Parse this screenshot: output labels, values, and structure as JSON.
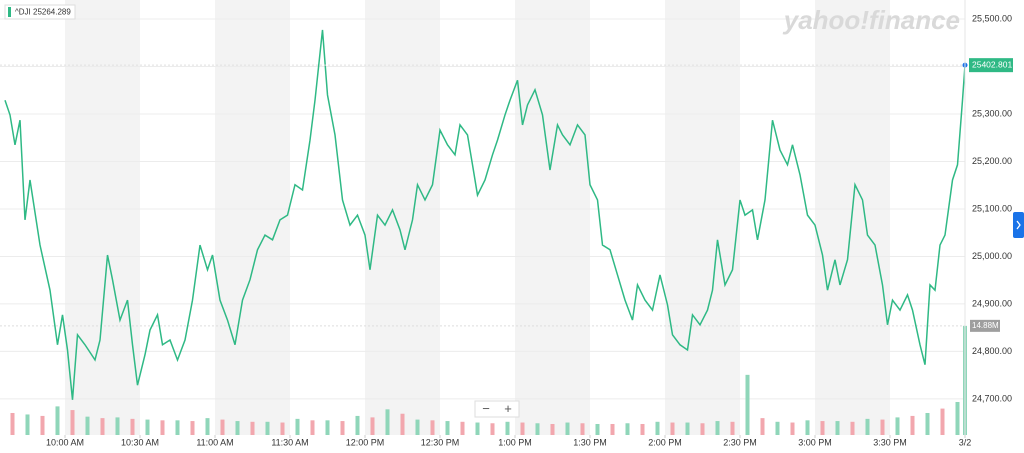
{
  "chart_data": {
    "type": "line",
    "brand": "yahoo!finance",
    "header_value": "25264.289",
    "zoom_controls": [
      "−",
      "+"
    ],
    "xlim": [
      4,
      390
    ],
    "xticks": [
      {
        "value": 30,
        "label": "10:00 AM"
      },
      {
        "value": 60,
        "label": "10:30 AM"
      },
      {
        "value": 90,
        "label": "11:00 AM"
      },
      {
        "value": 120,
        "label": "11:30 AM"
      },
      {
        "value": 150,
        "label": "12:00 PM"
      },
      {
        "value": 180,
        "label": "12:30 PM"
      },
      {
        "value": 210,
        "label": "1:00 PM"
      },
      {
        "value": 240,
        "label": "1:30 PM"
      },
      {
        "value": 270,
        "label": "2:00 PM"
      },
      {
        "value": 300,
        "label": "2:30 PM"
      },
      {
        "value": 330,
        "label": "3:00 PM"
      },
      {
        "value": 360,
        "label": "3:30 PM"
      },
      {
        "value": 390,
        "label": "3/2"
      }
    ],
    "ylim": [
      24624,
      25540
    ],
    "yticks": [
      {
        "value": 24700,
        "label": "24,700.00"
      },
      {
        "value": 24800,
        "label": "24,800.00"
      },
      {
        "value": 24900,
        "label": "24,900.00"
      },
      {
        "value": 25000,
        "label": "25,000.00"
      },
      {
        "value": 25100,
        "label": "25,100.00"
      },
      {
        "value": 25200,
        "label": "25,200.00"
      },
      {
        "value": 25300,
        "label": "25,300.00"
      },
      {
        "value": 25400,
        "label": "25,400.00"
      },
      {
        "value": 25500,
        "label": "25,500.00"
      }
    ],
    "series": [
      {
        "name": "^DJI",
        "color": "#2fb985",
        "x": [
          6,
          8,
          10,
          12,
          14,
          16,
          20,
          24,
          27,
          29,
          31,
          33,
          35,
          38,
          42,
          44,
          47,
          49,
          52,
          55,
          57,
          59,
          62,
          64,
          67,
          69,
          72,
          75,
          78,
          81,
          84,
          87,
          89,
          92,
          95,
          98,
          101,
          104,
          107,
          110,
          113,
          116,
          119,
          122,
          125,
          128,
          130,
          133,
          135,
          138,
          141,
          144,
          147,
          150,
          152,
          155,
          158,
          161,
          164,
          166,
          169,
          171,
          174,
          177,
          180,
          183,
          186,
          188,
          191,
          193,
          195,
          198,
          201,
          203,
          206,
          208,
          211,
          213,
          215,
          218,
          221,
          224,
          227,
          229,
          232,
          235,
          238,
          240,
          243,
          245,
          248,
          251,
          254,
          257,
          259,
          262,
          265,
          268,
          271,
          273,
          276,
          279,
          281,
          284,
          287,
          289,
          291,
          294,
          297,
          300,
          302,
          305,
          307,
          310,
          313,
          316,
          319,
          321,
          324,
          327,
          330,
          333,
          335,
          338,
          340,
          343,
          346,
          349,
          351,
          354,
          357,
          359,
          361,
          364,
          367,
          369,
          372,
          374,
          376,
          378,
          380,
          382,
          385,
          387,
          389,
          390
        ],
        "values": [
          25329,
          25298,
          25235,
          25287,
          25077,
          25161,
          25024,
          24929,
          24814,
          24877,
          24803,
          24698,
          24835,
          24814,
          24782,
          24824,
          25003,
          24951,
          24866,
          24908,
          24814,
          24729,
          24793,
          24845,
          24877,
          24814,
          24824,
          24782,
          24824,
          24908,
          25024,
          24972,
          25003,
          24908,
          24866,
          24814,
          24908,
          24951,
          25014,
          25045,
          25035,
          25077,
          25087,
          25151,
          25140,
          25245,
          25329,
          25477,
          25340,
          25256,
          25119,
          25066,
          25087,
          25045,
          24972,
          25087,
          25066,
          25098,
          25056,
          25014,
          25077,
          25151,
          25119,
          25151,
          25266,
          25235,
          25214,
          25277,
          25256,
          25193,
          25129,
          25161,
          25214,
          25245,
          25298,
          25329,
          25371,
          25277,
          25319,
          25351,
          25298,
          25182,
          25277,
          25256,
          25235,
          25277,
          25256,
          25151,
          25119,
          25024,
          25014,
          24961,
          24908,
          24866,
          24940,
          24908,
          24887,
          24961,
          24898,
          24835,
          24814,
          24803,
          24877,
          24856,
          24887,
          24929,
          25035,
          24940,
          24972,
          25119,
          25087,
          25098,
          25035,
          25119,
          25287,
          25224,
          25193,
          25235,
          25172,
          25087,
          25066,
          25003,
          24929,
          24993,
          24940,
          24993,
          25151,
          25119,
          25045,
          25024,
          24940,
          24856,
          24908,
          24887,
          24919,
          24887,
          24814,
          24772,
          24940,
          24929,
          25024,
          25045,
          25161,
          25193,
          25329,
          25402.801
        ],
        "last_label": "25402.801"
      }
    ],
    "volume": {
      "ylim": [
        0,
        59.3
      ],
      "last_label": "14.88M",
      "series": [
        {
          "color": "#8fd6b9",
          "x": [
            3,
            15,
            27,
            39,
            51,
            63,
            75,
            87,
            99,
            111,
            123,
            135,
            147,
            159,
            171,
            183,
            195,
            207,
            219,
            231,
            243,
            255,
            267,
            279,
            291,
            303,
            315,
            327,
            339,
            351,
            363,
            375,
            387,
            390
          ],
          "values": [
            3.2,
            2.8,
            3.9,
            2.5,
            2.4,
            2.1,
            2.0,
            2.3,
            1.9,
            1.8,
            2.2,
            2.0,
            2.6,
            3.5,
            2.1,
            1.9,
            1.7,
            1.8,
            1.6,
            1.7,
            1.5,
            1.6,
            1.8,
            1.7,
            1.9,
            8.2,
            1.8,
            2.0,
            1.9,
            2.2,
            2.4,
            3.0,
            4.5,
            14.88
          ]
        },
        {
          "color": "#f2a7ae",
          "x": [
            9,
            21,
            33,
            45,
            57,
            69,
            81,
            93,
            105,
            117,
            129,
            141,
            153,
            165,
            177,
            189,
            201,
            213,
            225,
            237,
            249,
            261,
            273,
            285,
            297,
            309,
            321,
            333,
            345,
            357,
            369,
            381
          ],
          "values": [
            3.0,
            2.6,
            3.4,
            2.3,
            2.2,
            2.0,
            1.9,
            2.1,
            1.8,
            1.7,
            2.0,
            1.9,
            2.4,
            2.9,
            2.0,
            1.8,
            1.6,
            1.7,
            1.5,
            1.6,
            1.5,
            1.5,
            1.7,
            1.6,
            1.8,
            2.3,
            1.7,
            1.9,
            1.8,
            2.1,
            2.6,
            3.6
          ]
        }
      ]
    }
  }
}
